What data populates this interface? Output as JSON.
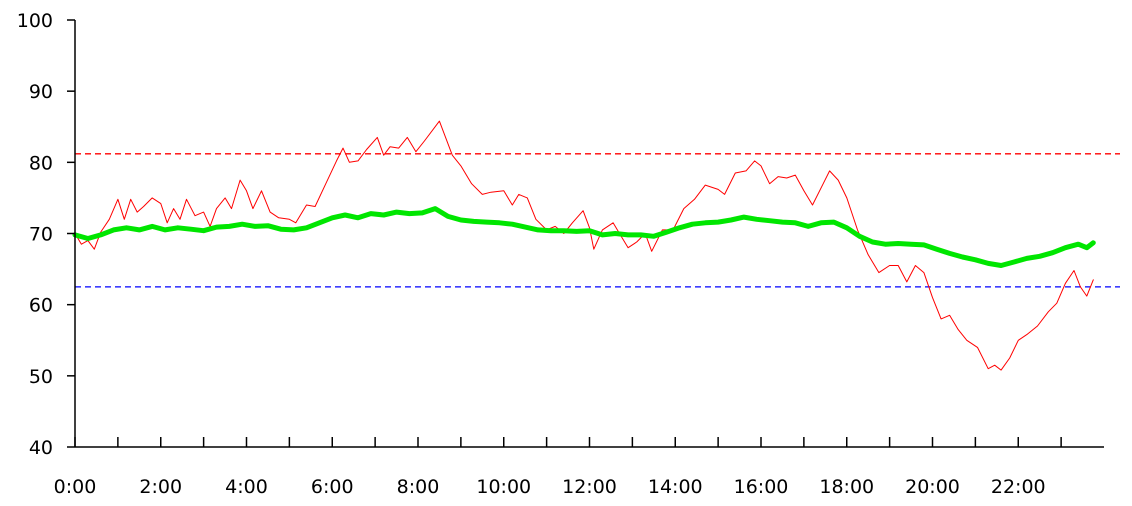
{
  "chart_data": {
    "type": "line",
    "title": "",
    "xlabel": "",
    "ylabel": "",
    "xlim": [
      0,
      24
    ],
    "ylim": [
      40,
      100
    ],
    "x_ticks": [
      0,
      1,
      2,
      3,
      4,
      5,
      6,
      7,
      8,
      9,
      10,
      11,
      12,
      13,
      14,
      15,
      16,
      17,
      18,
      19,
      20,
      21,
      22,
      23
    ],
    "x_tick_labels": [
      {
        "x": 0,
        "label": "0:00"
      },
      {
        "x": 2,
        "label": "2:00"
      },
      {
        "x": 4,
        "label": "4:00"
      },
      {
        "x": 6,
        "label": "6:00"
      },
      {
        "x": 8,
        "label": "8:00"
      },
      {
        "x": 10,
        "label": "10:00"
      },
      {
        "x": 12,
        "label": "12:00"
      },
      {
        "x": 14,
        "label": "14:00"
      },
      {
        "x": 16,
        "label": "16:00"
      },
      {
        "x": 18,
        "label": "18:00"
      },
      {
        "x": 20,
        "label": "20:00"
      },
      {
        "x": 22,
        "label": "22:00"
      }
    ],
    "y_ticks": [
      40,
      50,
      60,
      70,
      80,
      90,
      100
    ],
    "grid": false,
    "legend": "none",
    "reference_lines": [
      {
        "value": 81.2,
        "color": "#ff0000",
        "style": "dashed"
      },
      {
        "value": 62.5,
        "color": "#0000ff",
        "style": "dashed"
      }
    ],
    "series": [
      {
        "color": "#ff0000",
        "width": 1,
        "points": [
          [
            0.0,
            70.0
          ],
          [
            0.15,
            68.5
          ],
          [
            0.3,
            69.0
          ],
          [
            0.45,
            67.8
          ],
          [
            0.6,
            70.2
          ],
          [
            0.8,
            72.0
          ],
          [
            1.0,
            74.8
          ],
          [
            1.15,
            72.0
          ],
          [
            1.3,
            74.8
          ],
          [
            1.45,
            73.0
          ],
          [
            1.6,
            73.8
          ],
          [
            1.8,
            75.0
          ],
          [
            2.0,
            74.2
          ],
          [
            2.15,
            71.5
          ],
          [
            2.3,
            73.5
          ],
          [
            2.45,
            72.0
          ],
          [
            2.6,
            74.8
          ],
          [
            2.8,
            72.5
          ],
          [
            3.0,
            73.0
          ],
          [
            3.15,
            71.0
          ],
          [
            3.3,
            73.5
          ],
          [
            3.5,
            75.0
          ],
          [
            3.65,
            73.5
          ],
          [
            3.85,
            77.5
          ],
          [
            4.0,
            76.0
          ],
          [
            4.15,
            73.5
          ],
          [
            4.35,
            76.0
          ],
          [
            4.55,
            73.0
          ],
          [
            4.75,
            72.2
          ],
          [
            5.0,
            72.0
          ],
          [
            5.15,
            71.5
          ],
          [
            5.4,
            74.0
          ],
          [
            5.6,
            73.8
          ],
          [
            5.85,
            77.0
          ],
          [
            6.1,
            80.2
          ],
          [
            6.25,
            82.0
          ],
          [
            6.4,
            80.0
          ],
          [
            6.6,
            80.2
          ],
          [
            6.8,
            81.8
          ],
          [
            7.05,
            83.5
          ],
          [
            7.2,
            81.0
          ],
          [
            7.35,
            82.2
          ],
          [
            7.55,
            82.0
          ],
          [
            7.75,
            83.5
          ],
          [
            7.95,
            81.5
          ],
          [
            8.15,
            83.0
          ],
          [
            8.5,
            85.8
          ],
          [
            8.8,
            81.0
          ],
          [
            9.0,
            79.5
          ],
          [
            9.25,
            77.0
          ],
          [
            9.5,
            75.5
          ],
          [
            9.7,
            75.8
          ],
          [
            10.0,
            76.0
          ],
          [
            10.2,
            74.0
          ],
          [
            10.35,
            75.5
          ],
          [
            10.55,
            75.0
          ],
          [
            10.75,
            72.0
          ],
          [
            11.0,
            70.5
          ],
          [
            11.2,
            71.0
          ],
          [
            11.4,
            70.0
          ],
          [
            11.6,
            71.5
          ],
          [
            11.85,
            73.2
          ],
          [
            12.0,
            70.8
          ],
          [
            12.1,
            67.8
          ],
          [
            12.3,
            70.5
          ],
          [
            12.55,
            71.5
          ],
          [
            12.7,
            70.0
          ],
          [
            12.9,
            68.0
          ],
          [
            13.1,
            68.8
          ],
          [
            13.3,
            70.0
          ],
          [
            13.45,
            67.5
          ],
          [
            13.7,
            70.5
          ],
          [
            13.95,
            70.5
          ],
          [
            14.2,
            73.5
          ],
          [
            14.45,
            74.8
          ],
          [
            14.7,
            76.8
          ],
          [
            15.0,
            76.2
          ],
          [
            15.15,
            75.5
          ],
          [
            15.4,
            78.5
          ],
          [
            15.65,
            78.8
          ],
          [
            15.85,
            80.2
          ],
          [
            16.0,
            79.5
          ],
          [
            16.2,
            77.0
          ],
          [
            16.4,
            78.0
          ],
          [
            16.6,
            77.8
          ],
          [
            16.8,
            78.2
          ],
          [
            17.0,
            76.0
          ],
          [
            17.2,
            74.0
          ],
          [
            17.45,
            77.0
          ],
          [
            17.6,
            78.8
          ],
          [
            17.8,
            77.5
          ],
          [
            18.0,
            75.0
          ],
          [
            18.25,
            70.5
          ],
          [
            18.5,
            67.0
          ],
          [
            18.75,
            64.5
          ],
          [
            19.0,
            65.5
          ],
          [
            19.2,
            65.5
          ],
          [
            19.4,
            63.2
          ],
          [
            19.6,
            65.5
          ],
          [
            19.8,
            64.5
          ],
          [
            20.0,
            61.0
          ],
          [
            20.2,
            58.0
          ],
          [
            20.4,
            58.5
          ],
          [
            20.6,
            56.5
          ],
          [
            20.8,
            55.0
          ],
          [
            21.05,
            54.0
          ],
          [
            21.3,
            51.0
          ],
          [
            21.45,
            51.5
          ],
          [
            21.6,
            50.8
          ],
          [
            21.8,
            52.5
          ],
          [
            22.0,
            55.0
          ],
          [
            22.2,
            55.8
          ],
          [
            22.45,
            57.0
          ],
          [
            22.7,
            59.0
          ],
          [
            22.9,
            60.2
          ],
          [
            23.1,
            63.0
          ],
          [
            23.3,
            64.8
          ],
          [
            23.45,
            62.5
          ],
          [
            23.6,
            61.2
          ],
          [
            23.75,
            63.5
          ]
        ]
      },
      {
        "color": "#00e600",
        "width": 5,
        "points": [
          [
            0.0,
            69.8
          ],
          [
            0.3,
            69.3
          ],
          [
            0.6,
            69.8
          ],
          [
            0.9,
            70.5
          ],
          [
            1.2,
            70.8
          ],
          [
            1.5,
            70.5
          ],
          [
            1.8,
            71.0
          ],
          [
            2.1,
            70.5
          ],
          [
            2.4,
            70.8
          ],
          [
            2.7,
            70.6
          ],
          [
            3.0,
            70.4
          ],
          [
            3.3,
            70.9
          ],
          [
            3.6,
            71.0
          ],
          [
            3.9,
            71.3
          ],
          [
            4.2,
            71.0
          ],
          [
            4.5,
            71.1
          ],
          [
            4.8,
            70.6
          ],
          [
            5.1,
            70.5
          ],
          [
            5.4,
            70.8
          ],
          [
            5.7,
            71.5
          ],
          [
            6.0,
            72.2
          ],
          [
            6.3,
            72.6
          ],
          [
            6.6,
            72.2
          ],
          [
            6.9,
            72.8
          ],
          [
            7.2,
            72.6
          ],
          [
            7.5,
            73.0
          ],
          [
            7.8,
            72.8
          ],
          [
            8.1,
            72.9
          ],
          [
            8.4,
            73.5
          ],
          [
            8.7,
            72.4
          ],
          [
            9.0,
            71.9
          ],
          [
            9.3,
            71.7
          ],
          [
            9.6,
            71.6
          ],
          [
            9.9,
            71.5
          ],
          [
            10.2,
            71.3
          ],
          [
            10.5,
            70.9
          ],
          [
            10.8,
            70.5
          ],
          [
            11.1,
            70.4
          ],
          [
            11.4,
            70.4
          ],
          [
            11.7,
            70.3
          ],
          [
            12.0,
            70.4
          ],
          [
            12.3,
            69.8
          ],
          [
            12.6,
            70.0
          ],
          [
            12.9,
            69.8
          ],
          [
            13.2,
            69.8
          ],
          [
            13.5,
            69.6
          ],
          [
            13.8,
            70.2
          ],
          [
            14.1,
            70.8
          ],
          [
            14.4,
            71.3
          ],
          [
            14.7,
            71.5
          ],
          [
            15.0,
            71.6
          ],
          [
            15.3,
            71.9
          ],
          [
            15.6,
            72.3
          ],
          [
            15.9,
            72.0
          ],
          [
            16.2,
            71.8
          ],
          [
            16.5,
            71.6
          ],
          [
            16.8,
            71.5
          ],
          [
            17.1,
            71.0
          ],
          [
            17.4,
            71.5
          ],
          [
            17.7,
            71.6
          ],
          [
            18.0,
            70.8
          ],
          [
            18.3,
            69.6
          ],
          [
            18.6,
            68.8
          ],
          [
            18.9,
            68.5
          ],
          [
            19.2,
            68.6
          ],
          [
            19.5,
            68.5
          ],
          [
            19.8,
            68.4
          ],
          [
            20.1,
            67.8
          ],
          [
            20.4,
            67.2
          ],
          [
            20.7,
            66.7
          ],
          [
            21.0,
            66.3
          ],
          [
            21.3,
            65.8
          ],
          [
            21.6,
            65.5
          ],
          [
            21.9,
            66.0
          ],
          [
            22.2,
            66.5
          ],
          [
            22.5,
            66.8
          ],
          [
            22.8,
            67.3
          ],
          [
            23.1,
            68.0
          ],
          [
            23.4,
            68.5
          ],
          [
            23.6,
            68.0
          ],
          [
            23.75,
            68.7
          ]
        ]
      }
    ]
  }
}
